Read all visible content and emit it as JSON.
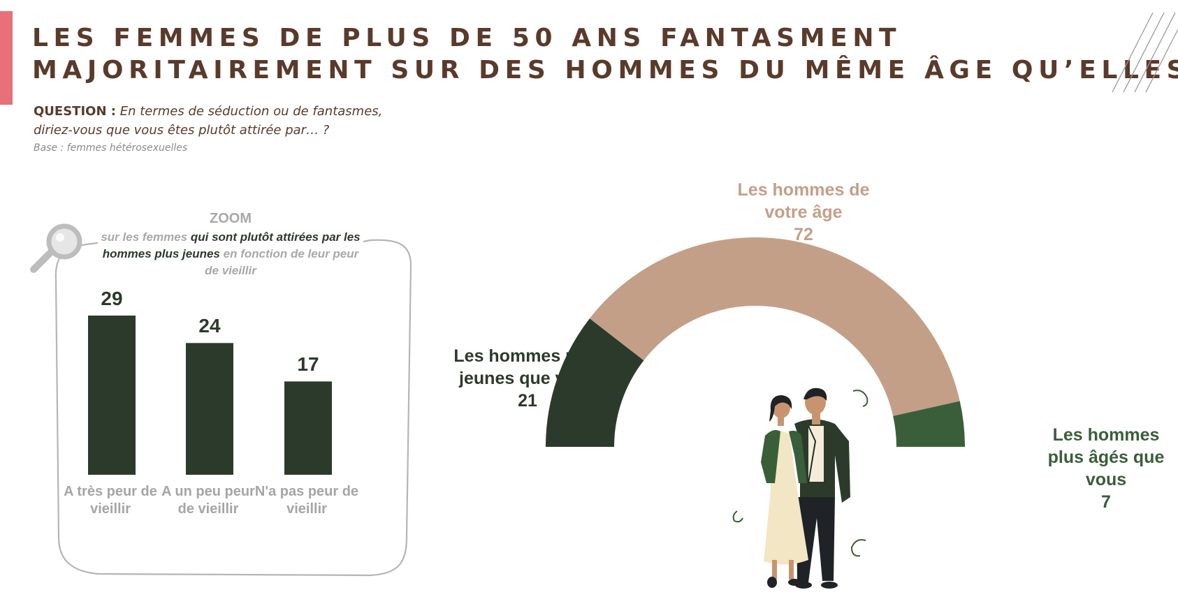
{
  "title": {
    "line1": "LES FEMMES DE PLUS DE 50 ANS FANTASMENT",
    "line2": "MAJORITAIREMENT SUR DES HOMMES DU MÊME ÂGE QU’ELLES"
  },
  "question": {
    "label": "QUESTION :",
    "text": "En termes de séduction ou de fantasmes, diriez-vous que vous êtes plutôt attirée par… ?"
  },
  "base": "Base : femmes hétérosexuelles",
  "zoom": {
    "title": "ZOOM",
    "sub_pre": "sur les femmes",
    "sub_highlight": "qui sont plutôt attirées par les hommes plus jeunes",
    "sub_post": "en fonction de leur peur de vieillir"
  },
  "colors": {
    "accent": "#e8707a",
    "title": "#5a3a2a",
    "dark_green": "#2c3a2c",
    "beige": "#c49f88",
    "green": "#3a5e3a",
    "muted": "#a8a8a8"
  },
  "icons": [
    "magnifier-icon",
    "couple-illustration",
    "decorative-lines"
  ],
  "chart_data": [
    {
      "type": "bar",
      "categories": [
        "A très peur de vieillir",
        "A un peu peur de vieillir",
        "N'a pas peur de vieillir"
      ],
      "values": [
        29,
        24,
        17
      ],
      "ylim": [
        0,
        30
      ],
      "grid": false,
      "color": "#2c3a2c"
    },
    {
      "type": "pie",
      "variant": "half-donut",
      "categories": [
        "Les hommes plus jeunes que vous",
        "Les hommes de votre âge",
        "Les hommes plus âgés que vous"
      ],
      "values": [
        21,
        72,
        7
      ],
      "colors": [
        "#2c3a2c",
        "#c49f88",
        "#3a5e3a"
      ]
    }
  ]
}
